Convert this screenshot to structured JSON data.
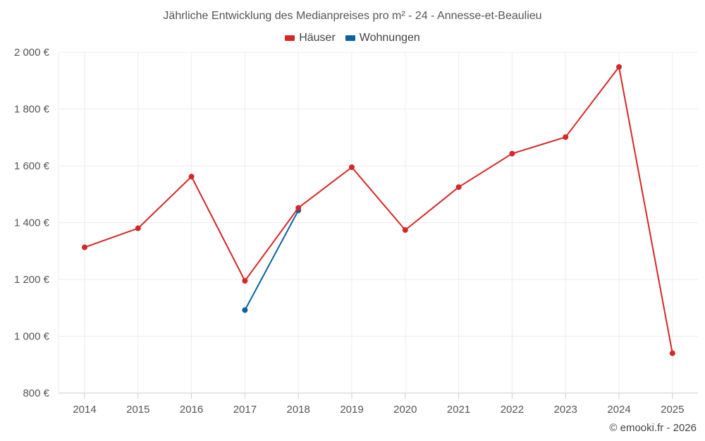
{
  "chart_data": {
    "type": "line",
    "title": "Jährliche Entwicklung des Medianpreises pro m² - 24 - Annesse-et-Beaulieu",
    "categories": [
      "2014",
      "2015",
      "2016",
      "2017",
      "2018",
      "2019",
      "2020",
      "2021",
      "2022",
      "2023",
      "2024",
      "2025"
    ],
    "series": [
      {
        "name": "Häuser",
        "color": "#d62728",
        "values": [
          1313,
          1380,
          1562,
          1195,
          1452,
          1595,
          1374,
          1525,
          1643,
          1701,
          1948,
          940
        ]
      },
      {
        "name": "Wohnungen",
        "color": "#0a629e",
        "values": [
          null,
          null,
          null,
          1092,
          1443,
          null,
          null,
          null,
          null,
          null,
          null,
          null
        ]
      }
    ],
    "ylim": [
      800,
      2000
    ],
    "yticks": [
      800,
      1000,
      1200,
      1400,
      1600,
      1800,
      2000
    ],
    "ytick_labels": [
      "800 €",
      "1 000 €",
      "1 200 €",
      "1 400 €",
      "1 600 €",
      "1 800 €",
      "2 000 €"
    ],
    "grid": true,
    "legend_position": "top-center"
  },
  "credit": "© emooki.fr - 2026"
}
